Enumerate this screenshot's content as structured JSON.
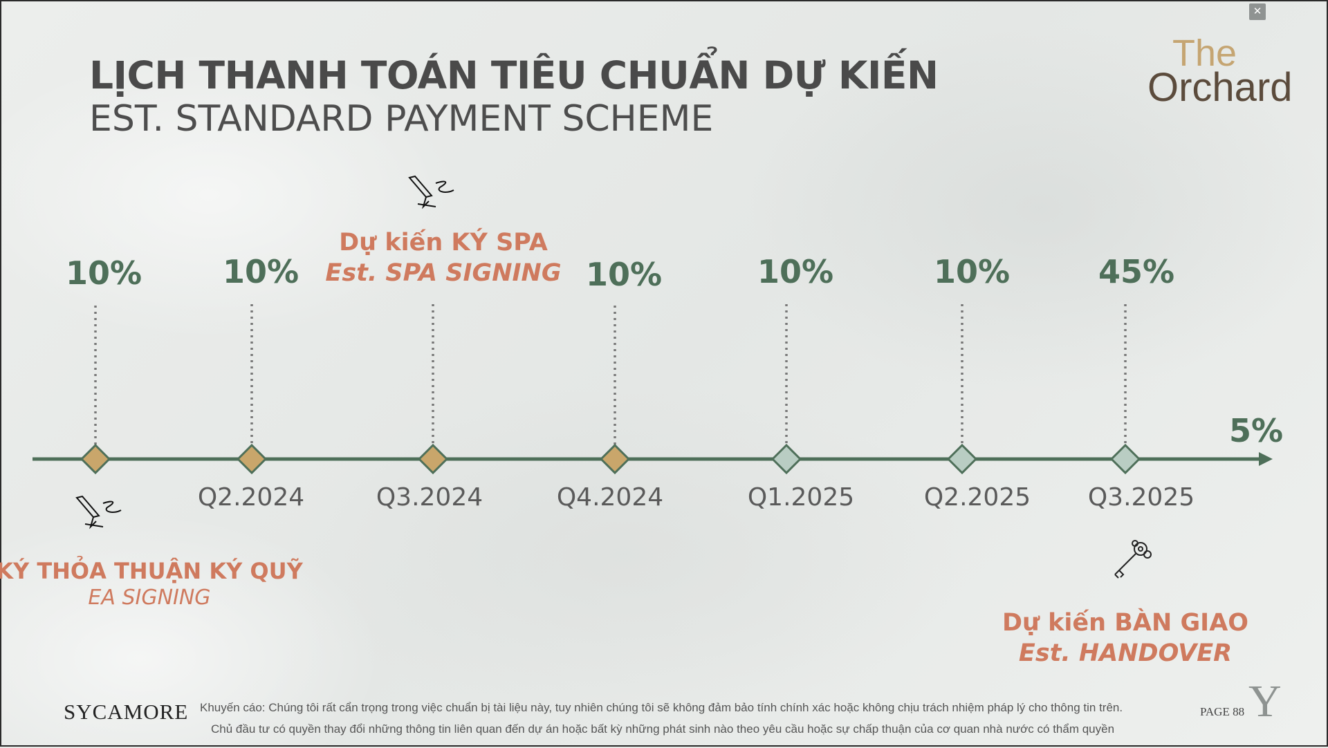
{
  "header": {
    "title_vn": "LỊCH THANH TOÁN TIÊU CHUẨN DỰ KIẾN",
    "title_en": "EST. STANDARD PAYMENT SCHEME"
  },
  "brand": {
    "the": "The",
    "orchard": "Orchard",
    "sycamore": "SYCAMORE",
    "y_logo": "Y"
  },
  "window": {
    "close_icon": "collapse-icon"
  },
  "timeline": {
    "percents": [
      "10%",
      "10%",
      "10%",
      "10%",
      "10%",
      "45%"
    ],
    "final_percent": "5%",
    "quarters": [
      "Q2.2024",
      "Q3.2024",
      "Q4.2024",
      "Q1.2025",
      "Q2.2025",
      "Q3.2025"
    ],
    "milestones": {
      "ea": {
        "vn": "KÝ THỎA THUẬN KÝ QUỸ",
        "en": "EA SIGNING",
        "icon": "signature-icon"
      },
      "spa": {
        "vn": "Dự kiến KÝ SPA",
        "en": "Est. SPA SIGNING",
        "icon": "signature-icon"
      },
      "handover": {
        "vn": "Dự kiến BÀN GIAO",
        "en": "Est. HANDOVER",
        "icon": "key-icon"
      }
    },
    "colors": {
      "line": "#4e6f59",
      "gold_marker": "#c9a66b",
      "sage_marker": "#b9cdc3",
      "accent": "#cf7a5e"
    }
  },
  "footer": {
    "disclaimer_line1": "Khuyến cáo: Chúng tôi rất cẩn trọng trong việc chuẩn bị tài liệu này, tuy nhiên chúng tôi sẽ không đảm bảo tính chính xác hoặc không chịu trách nhiệm pháp lý cho thông tin trên.",
    "disclaimer_line2": "Chủ đầu tư có quyền thay đổi những thông tin liên quan đến dự án hoặc bất kỳ những phát sinh nào theo yêu cầu hoặc sự chấp thuận của cơ quan nhà nước có thẩm quyền",
    "page": "PAGE 88"
  }
}
